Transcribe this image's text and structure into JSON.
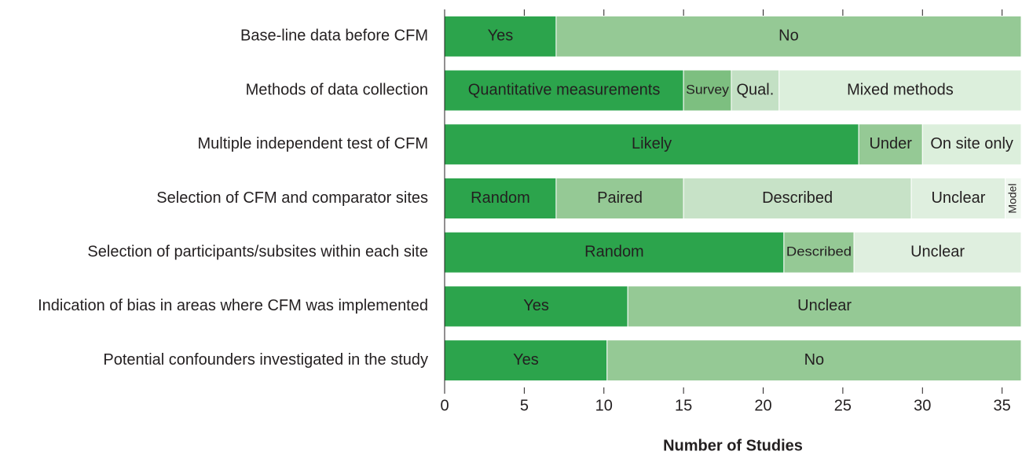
{
  "chart_data": {
    "type": "stacked-bar-horizontal",
    "x_label": "Number of Studies",
    "categories": [
      "Base-line data before CFM",
      "Methods of data collection",
      "Multiple independent test of CFM",
      "Selection of CFM and comparator sites",
      "Selection of participants/subsites within each site",
      "Indication of bias in areas where CFM was implemented",
      "Potential confounders investigated in the study"
    ],
    "segments": [
      [
        {
          "label": "Yes",
          "value": 7,
          "color": "#2ca44c"
        },
        {
          "label": "No",
          "value": 29.2,
          "color": "#95c995"
        }
      ],
      [
        {
          "label": "Quantitative measurements",
          "value": 15,
          "color": "#2ca44c"
        },
        {
          "label": "Survey",
          "value": 3,
          "color": "#7dbf80"
        },
        {
          "label": "Qual.",
          "value": 3,
          "color": "#c3e0c4"
        },
        {
          "label": "Mixed methods",
          "value": 15.2,
          "color": "#dcefdc"
        }
      ],
      [
        {
          "label": "Likely",
          "value": 26,
          "color": "#2ca44c"
        },
        {
          "label": "Under",
          "value": 4,
          "color": "#95c995"
        },
        {
          "label": "On site only",
          "value": 6.2,
          "color": "#dcefdc"
        }
      ],
      [
        {
          "label": "Random",
          "value": 7,
          "color": "#2ca44c"
        },
        {
          "label": "Paired",
          "value": 8,
          "color": "#95c995"
        },
        {
          "label": "Described",
          "value": 14.3,
          "color": "#c7e2c7"
        },
        {
          "label": "Unclear",
          "value": 5.9,
          "color": "#dfefdf"
        },
        {
          "label": "Model",
          "value": 1,
          "color": "#eef7ee"
        }
      ],
      [
        {
          "label": "Random",
          "value": 21.3,
          "color": "#2ca44c"
        },
        {
          "label": "Described",
          "value": 4.4,
          "color": "#95c995"
        },
        {
          "label": "Unclear",
          "value": 10.5,
          "color": "#dfefdf"
        }
      ],
      [
        {
          "label": "Yes",
          "value": 11.5,
          "color": "#2ca44c"
        },
        {
          "label": "Unclear",
          "value": 24.7,
          "color": "#95c995"
        }
      ],
      [
        {
          "label": "Yes",
          "value": 10.2,
          "color": "#2ca44c"
        },
        {
          "label": "No",
          "value": 26,
          "color": "#95c995"
        }
      ]
    ],
    "xlim": [
      0,
      36.2
    ],
    "xticks": [
      0,
      5,
      10,
      15,
      20,
      25,
      30,
      35
    ]
  }
}
